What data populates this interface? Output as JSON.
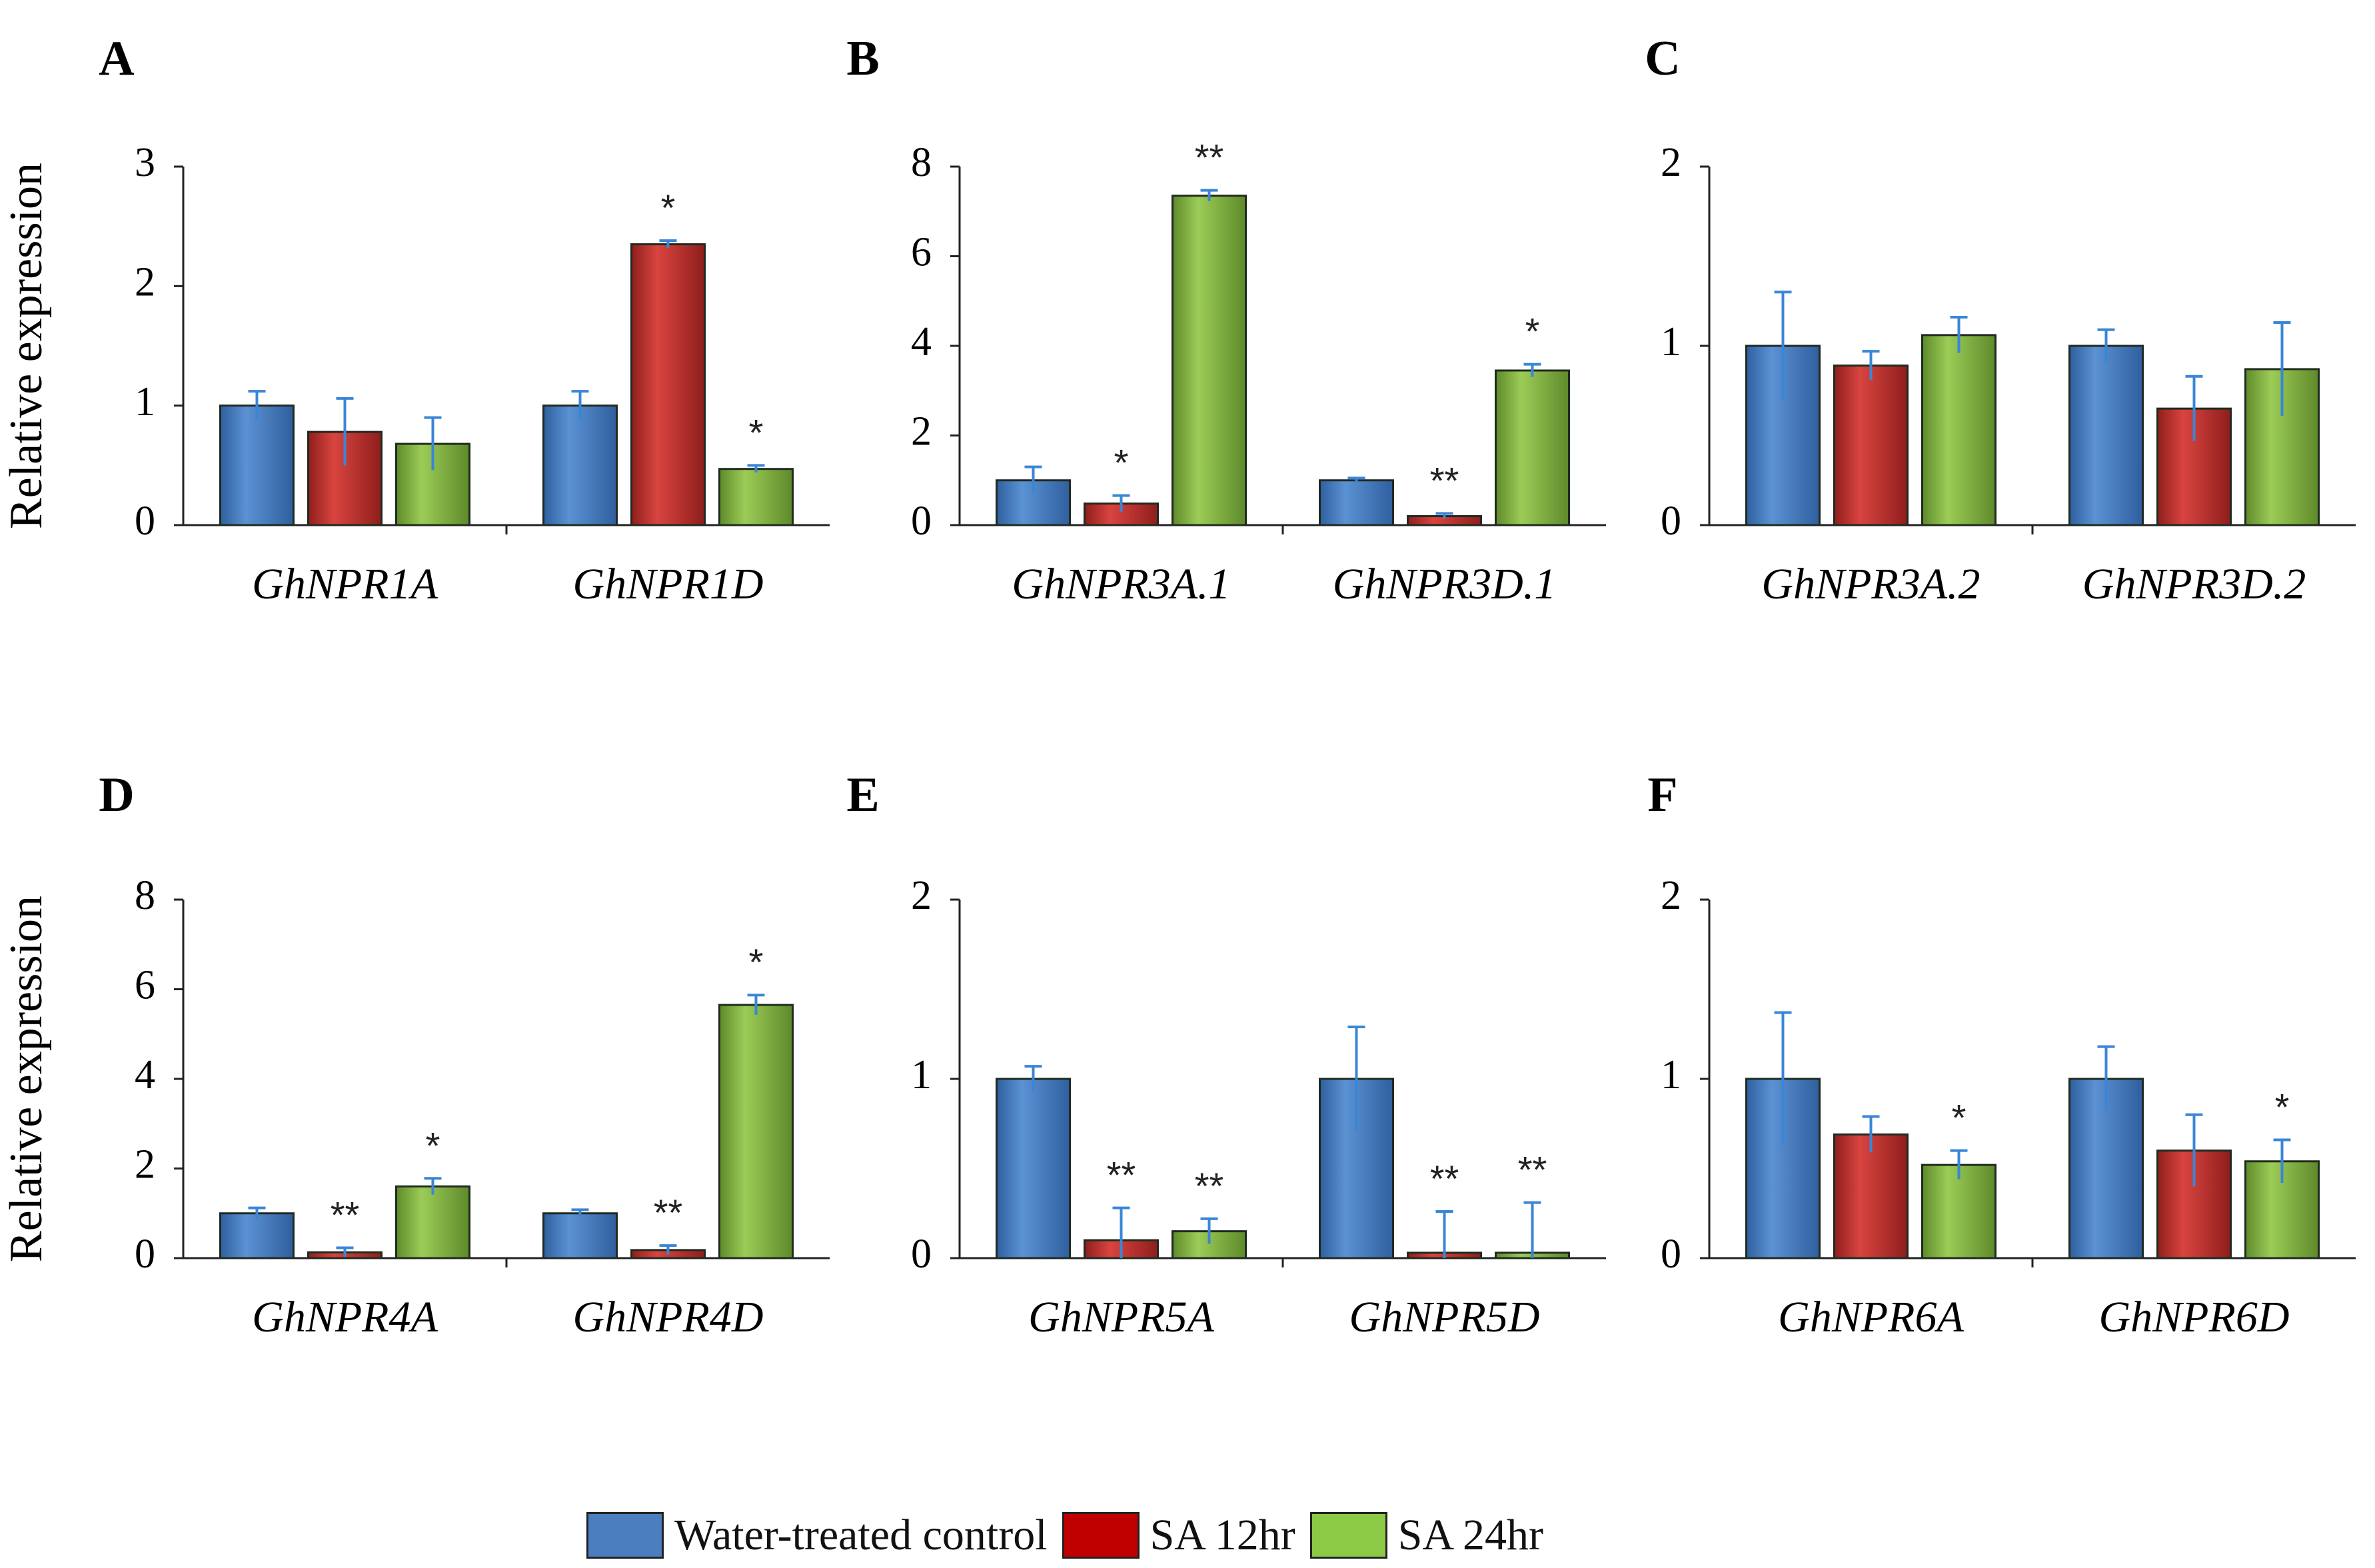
{
  "colors": {
    "control": "#4a7ebf",
    "sa12": "#c0302f",
    "sa24": "#8cbb45",
    "error_bar": "#3a86d6",
    "axis": "#222222"
  },
  "legend": [
    {
      "label": "Water-treated control",
      "color": "#4a7ebf"
    },
    {
      "label": "SA 12hr",
      "color": "#c00000"
    },
    {
      "label": "SA 24hr",
      "color": "#8cca45"
    }
  ],
  "chart_data": [
    {
      "panel": "A",
      "type": "bar",
      "ylabel": "Relative expression",
      "ylim": [
        0,
        3
      ],
      "yticks": [
        0,
        1,
        2,
        3
      ],
      "categories": [
        "GhNPR1A",
        "GhNPR1D"
      ],
      "series": [
        {
          "key": "control",
          "values": [
            1.0,
            1.0
          ],
          "errors": [
            0.12,
            0.12
          ],
          "sig": [
            "",
            ""
          ]
        },
        {
          "key": "sa12",
          "values": [
            0.78,
            2.35
          ],
          "errors": [
            0.28,
            0.03
          ],
          "sig": [
            "",
            "*"
          ]
        },
        {
          "key": "sa24",
          "values": [
            0.68,
            0.47
          ],
          "errors": [
            0.22,
            0.03
          ],
          "sig": [
            "",
            "*"
          ]
        }
      ]
    },
    {
      "panel": "B",
      "type": "bar",
      "ylabel": "",
      "ylim": [
        0,
        8
      ],
      "yticks": [
        0,
        2,
        4,
        6,
        8
      ],
      "categories": [
        "GhNPR3A.1",
        "GhNPR3D.1"
      ],
      "series": [
        {
          "key": "control",
          "values": [
            1.0,
            1.0
          ],
          "errors": [
            0.3,
            0.05
          ],
          "sig": [
            "",
            ""
          ]
        },
        {
          "key": "sa12",
          "values": [
            0.48,
            0.2
          ],
          "errors": [
            0.18,
            0.06
          ],
          "sig": [
            "*",
            "**"
          ]
        },
        {
          "key": "sa24",
          "values": [
            7.35,
            3.45
          ],
          "errors": [
            0.12,
            0.14
          ],
          "sig": [
            "**",
            "*"
          ]
        }
      ]
    },
    {
      "panel": "C",
      "type": "bar",
      "ylabel": "",
      "ylim": [
        0,
        2
      ],
      "yticks": [
        0,
        1,
        2
      ],
      "categories": [
        "GhNPR3A.2",
        "GhNPR3D.2"
      ],
      "series": [
        {
          "key": "control",
          "values": [
            1.0,
            1.0
          ],
          "errors": [
            0.3,
            0.09
          ],
          "sig": [
            "",
            ""
          ]
        },
        {
          "key": "sa12",
          "values": [
            0.89,
            0.65
          ],
          "errors": [
            0.08,
            0.18
          ],
          "sig": [
            "",
            ""
          ]
        },
        {
          "key": "sa24",
          "values": [
            1.06,
            0.87
          ],
          "errors": [
            0.1,
            0.26
          ],
          "sig": [
            "",
            ""
          ]
        }
      ]
    },
    {
      "panel": "D",
      "type": "bar",
      "ylabel": "Relative expression",
      "ylim": [
        0,
        8
      ],
      "yticks": [
        0,
        2,
        4,
        6,
        8
      ],
      "categories": [
        "GhNPR4A",
        "GhNPR4D"
      ],
      "series": [
        {
          "key": "control",
          "values": [
            1.0,
            1.0
          ],
          "errors": [
            0.12,
            0.08
          ],
          "sig": [
            "",
            ""
          ]
        },
        {
          "key": "sa12",
          "values": [
            0.13,
            0.18
          ],
          "errors": [
            0.1,
            0.1
          ],
          "sig": [
            "**",
            "**"
          ]
        },
        {
          "key": "sa24",
          "values": [
            1.6,
            5.65
          ],
          "errors": [
            0.18,
            0.22
          ],
          "sig": [
            "*",
            "*"
          ]
        }
      ]
    },
    {
      "panel": "E",
      "type": "bar",
      "ylabel": "",
      "ylim": [
        0,
        2
      ],
      "yticks": [
        0,
        1,
        2
      ],
      "categories": [
        "GhNPR5A",
        "GhNPR5D"
      ],
      "series": [
        {
          "key": "control",
          "values": [
            1.0,
            1.0
          ],
          "errors": [
            0.07,
            0.29
          ],
          "sig": [
            "",
            ""
          ]
        },
        {
          "key": "sa12",
          "values": [
            0.1,
            0.03
          ],
          "errors": [
            0.18,
            0.23
          ],
          "sig": [
            "**",
            "**"
          ]
        },
        {
          "key": "sa24",
          "values": [
            0.15,
            0.03
          ],
          "errors": [
            0.07,
            0.28
          ],
          "sig": [
            "**",
            "**"
          ]
        }
      ]
    },
    {
      "panel": "F",
      "type": "bar",
      "ylabel": "",
      "ylim": [
        0,
        2
      ],
      "yticks": [
        0,
        1,
        2
      ],
      "categories": [
        "GhNPR6A",
        "GhNPR6D"
      ],
      "series": [
        {
          "key": "control",
          "values": [
            1.0,
            1.0
          ],
          "errors": [
            0.37,
            0.18
          ],
          "sig": [
            "",
            ""
          ]
        },
        {
          "key": "sa12",
          "values": [
            0.69,
            0.6
          ],
          "errors": [
            0.1,
            0.2
          ],
          "sig": [
            "",
            ""
          ]
        },
        {
          "key": "sa24",
          "values": [
            0.52,
            0.54
          ],
          "errors": [
            0.08,
            0.12
          ],
          "sig": [
            "*",
            "*"
          ]
        }
      ]
    }
  ]
}
